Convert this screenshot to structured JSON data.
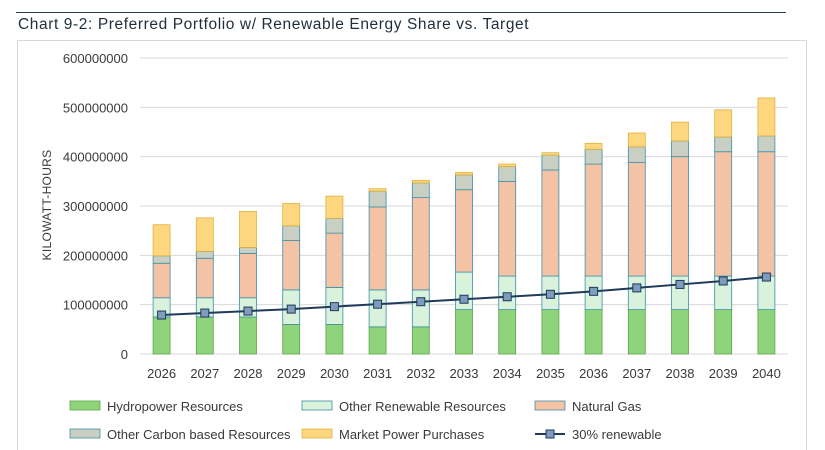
{
  "page_title": "Chart 9-2: Preferred Portfolio w/ Renewable Energy Share vs. Target",
  "chart_data": {
    "type": "bar",
    "stacked": true,
    "title": "Chart 9-2: Preferred Portfolio w/ Renewable Energy Share vs. Target",
    "xlabel": "",
    "ylabel": "KILOWATT-HOURS",
    "ylim": [
      0,
      600000000
    ],
    "yticks": [
      "0",
      "100000000",
      "200000000",
      "300000000",
      "400000000",
      "500000000",
      "600000000"
    ],
    "ytick_values": [
      0,
      100000000,
      200000000,
      300000000,
      400000000,
      500000000,
      600000000
    ],
    "grid": true,
    "legend_position": "bottom",
    "categories": [
      "2026",
      "2027",
      "2028",
      "2029",
      "2030",
      "2031",
      "2032",
      "2033",
      "2034",
      "2035",
      "2036",
      "2037",
      "2038",
      "2039",
      "2040"
    ],
    "series": [
      {
        "name": "Hydropower Resources",
        "type": "bar",
        "color": "#8fd37a",
        "stroke": "#5aa84a",
        "values": [
          75000000,
          75000000,
          75000000,
          60000000,
          60000000,
          55000000,
          55000000,
          90000000,
          90000000,
          90000000,
          90000000,
          90000000,
          90000000,
          90000000,
          90000000
        ]
      },
      {
        "name": "Other Renewable Resources",
        "type": "bar",
        "color": "#d8f2dc",
        "stroke": "#3f8fa6",
        "values": [
          39000000,
          39000000,
          39000000,
          70000000,
          75000000,
          75000000,
          75000000,
          76000000,
          68000000,
          68000000,
          68000000,
          68000000,
          68000000,
          68000000,
          68000000
        ]
      },
      {
        "name": "Natural Gas",
        "type": "bar",
        "color": "#f4c3a6",
        "stroke": "#3f8fa6",
        "values": [
          70000000,
          80000000,
          90000000,
          100000000,
          110000000,
          168000000,
          187000000,
          167000000,
          192000000,
          215000000,
          227000000,
          230000000,
          242000000,
          252000000,
          252000000
        ]
      },
      {
        "name": "Other Carbon based Resources",
        "type": "bar",
        "color": "#c9d0c3",
        "stroke": "#3f8fa6",
        "values": [
          15000000,
          14000000,
          12000000,
          30000000,
          30000000,
          32000000,
          30000000,
          30000000,
          30000000,
          30000000,
          30000000,
          32000000,
          32000000,
          30000000,
          32000000
        ]
      },
      {
        "name": "Market Power Purchases",
        "type": "bar",
        "color": "#fcd77f",
        "stroke": "#e0b23c",
        "values": [
          63000000,
          68000000,
          73000000,
          45000000,
          45000000,
          5000000,
          5000000,
          5000000,
          5000000,
          5000000,
          12000000,
          28000000,
          38000000,
          55000000,
          77000000
        ]
      },
      {
        "name": "30% renewable",
        "type": "line",
        "color": "#1f3a5a",
        "marker_color": "#7f9bbd",
        "values": [
          79000000,
          83000000,
          87000000,
          91000000,
          96000000,
          101000000,
          106000000,
          111000000,
          116000000,
          121000000,
          127000000,
          134000000,
          141000000,
          148000000,
          156000000
        ]
      }
    ]
  }
}
